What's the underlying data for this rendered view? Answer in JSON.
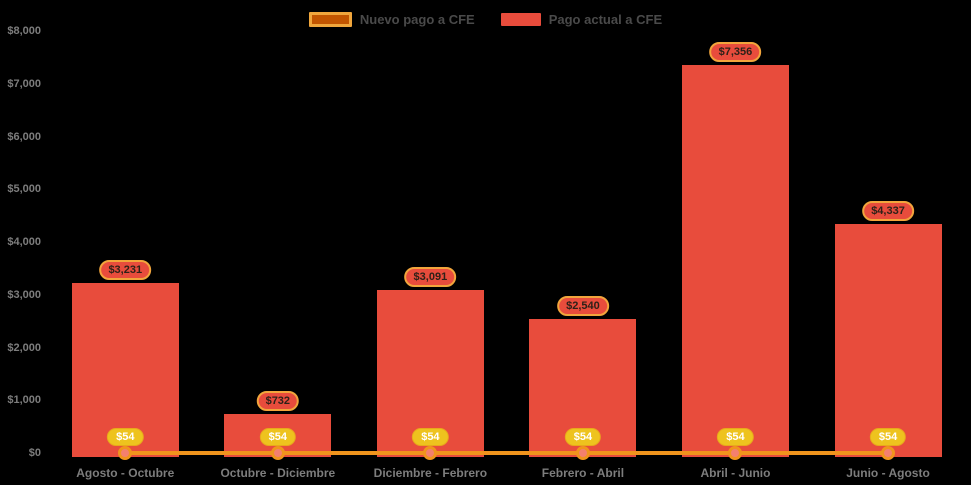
{
  "legend": {
    "items": [
      {
        "label": "Nuevo pago a CFE",
        "swatch_fill": "#c25500",
        "swatch_border": "#f0a63c"
      },
      {
        "label": "Pago actual a CFE",
        "swatch_fill": "#e84c3c"
      }
    ]
  },
  "chart_data": {
    "type": "bar",
    "categories": [
      "Agosto - Octubre",
      "Octubre - Diciembre",
      "Diciembre - Febrero",
      "Febrero - Abril",
      "Abril - Junio",
      "Junio - Agosto"
    ],
    "series": [
      {
        "name": "Nuevo pago a CFE",
        "type": "line",
        "color": "#f0941d",
        "marker_fill": "#f4806e",
        "values": [
          54,
          54,
          54,
          54,
          54,
          54
        ],
        "point_labels": [
          "$54",
          "$54",
          "$54",
          "$54",
          "$54",
          "$54"
        ]
      },
      {
        "name": "Pago actual a CFE",
        "type": "bar",
        "color": "#e84c3c",
        "values": [
          3231,
          732,
          3091,
          2540,
          7356,
          4337
        ],
        "bar_labels": [
          "$3,231",
          "$732",
          "$3,091",
          "$2,540",
          "$7,356",
          "$4,337"
        ]
      }
    ],
    "title": "",
    "xlabel": "",
    "ylabel": "",
    "ylim": [
      0,
      8000
    ],
    "ytick_step": 1000,
    "ytick_labels": [
      "$0",
      "$1,000",
      "$2,000",
      "$3,000",
      "$4,000",
      "$5,000",
      "$6,000",
      "$7,000",
      "$8,000"
    ],
    "grid": false,
    "legend_position": "top-center"
  },
  "colors": {
    "background": "#000000",
    "axis_text": "#7d7d7d",
    "legend_text": "#4a4a4a",
    "badge_fill": "#eec31e",
    "badge_text": "#ffffff",
    "pill_fill": "#e84c3c",
    "pill_border": "#f2a53c",
    "pill_text": "#2e2118"
  }
}
